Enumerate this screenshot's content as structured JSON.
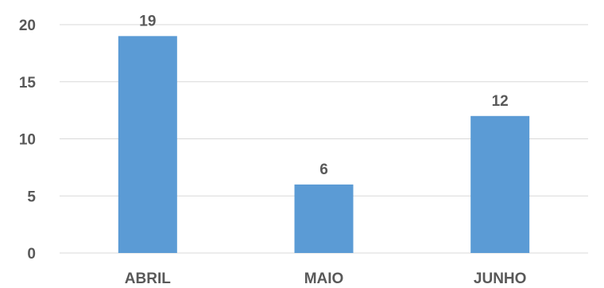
{
  "chart_data": {
    "type": "bar",
    "categories": [
      "ABRIL",
      "MAIO",
      "JUNHO"
    ],
    "values": [
      19,
      6,
      12
    ],
    "data_labels": [
      "19",
      "6",
      "12"
    ],
    "y_ticks": [
      "0",
      "5",
      "10",
      "15",
      "20"
    ],
    "ylim": [
      0,
      20
    ],
    "title": "",
    "xlabel": "",
    "ylabel": "",
    "grid": true,
    "bar_color": "#5b9bd5"
  }
}
